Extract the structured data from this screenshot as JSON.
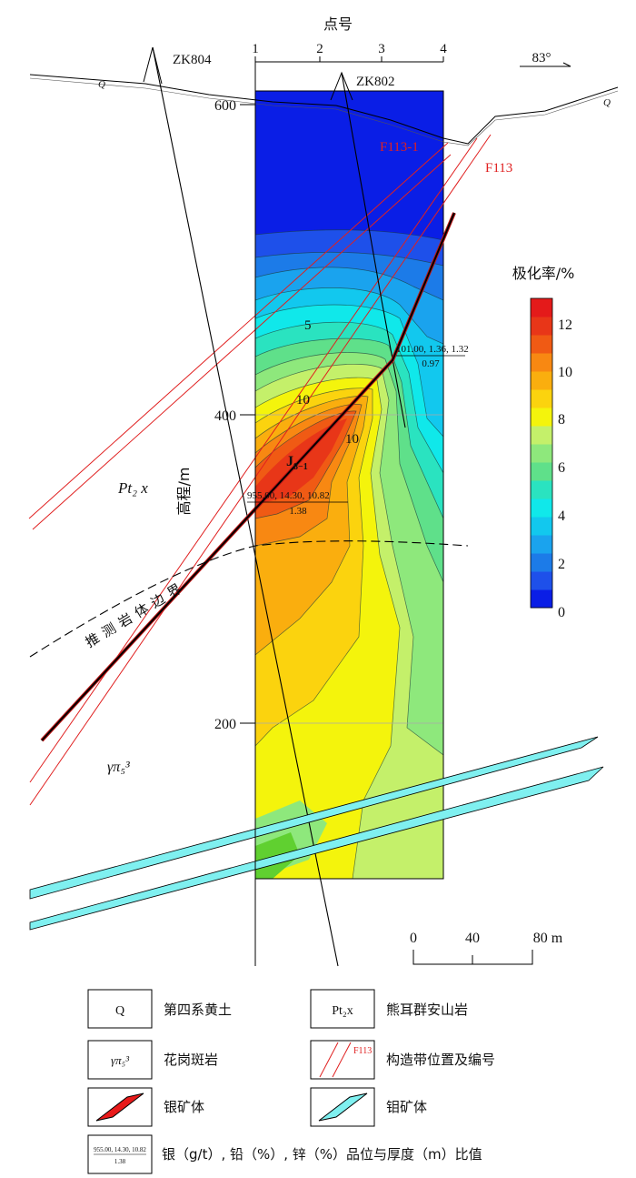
{
  "header": {
    "point_label": "点号",
    "points": [
      "1",
      "2",
      "3",
      "4"
    ],
    "azimuth": "83°"
  },
  "drillholes": [
    "ZK804",
    "ZK802"
  ],
  "faults": [
    "F113-1",
    "F113"
  ],
  "elevation_axis": {
    "label": "高程/m",
    "ticks": [
      "600",
      "400",
      "200"
    ]
  },
  "contour_labels": [
    "5",
    "10",
    "10"
  ],
  "rock_labels": {
    "quaternary_left": "Q",
    "quaternary_right": "Q",
    "pt2x": "Pt₂ x",
    "granite": "γπ₅³"
  },
  "orebody": {
    "name": "J",
    "sub": "8−1"
  },
  "grade_annotations": [
    {
      "top": "101.00, 1.36, 1.32",
      "bottom": "0.97"
    },
    {
      "top": "955.00, 14.30, 10.82",
      "bottom": "1.38"
    }
  ],
  "boundary_label": "推测岩体边界",
  "colorbar": {
    "title": "极化率/%",
    "ticks": [
      "12",
      "10",
      "8",
      "6",
      "4",
      "2",
      "0"
    ],
    "colors": [
      "#0a1ee6",
      "#1e50ea",
      "#1c7be8",
      "#1aa3ee",
      "#12c8ee",
      "#10e8ea",
      "#2ae3c0",
      "#5fe08a",
      "#8ee87c",
      "#c4f06a",
      "#f4f40c",
      "#fbd30e",
      "#faae0e",
      "#f88812",
      "#f05a14",
      "#e83618",
      "#e41a1a"
    ]
  },
  "scale_bar": {
    "ticks": [
      "0",
      "40",
      "80 m"
    ]
  },
  "legend": [
    {
      "symbol": "Q",
      "label": "第四系黄土"
    },
    {
      "symbol": "Pt₂x",
      "label": "熊耳群安山岩"
    },
    {
      "symbol": "γπ₅³",
      "label": "花岗斑岩"
    },
    {
      "symbol": "F113",
      "label": "构造带位置及编号"
    },
    {
      "symbol": "",
      "label": "银矿体"
    },
    {
      "symbol": "",
      "label": "钼矿体"
    },
    {
      "symbol": "955.00, 14.30, 10.82 / 1.38",
      "label": "银（g/t）, 铅（%）, 锌（%）品位与厚度（m）比值"
    }
  ],
  "legend_ratio": {
    "top": "955.00, 14.30, 10.82",
    "bottom": "1.38"
  }
}
